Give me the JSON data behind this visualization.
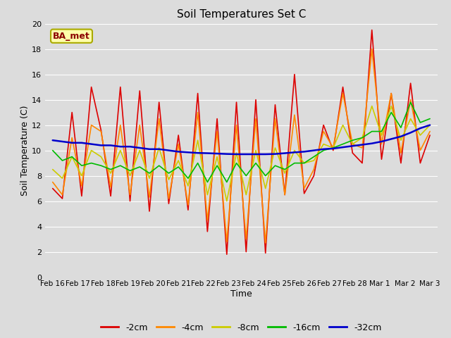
{
  "title": "Soil Temperatures Set C",
  "xlabel": "Time",
  "ylabel": "Soil Temperature (C)",
  "annotation": "BA_met",
  "ylim": [
    0,
    20
  ],
  "plot_bg_color": "#dcdcdc",
  "fig_bg_color": "#dcdcdc",
  "grid_color": "#ffffff",
  "x_labels": [
    "Feb 16",
    "Feb 17",
    "Feb 18",
    "Feb 19",
    "Feb 20",
    "Feb 21",
    "Feb 22",
    "Feb 23",
    "Feb 24",
    "Feb 25",
    "Feb 26",
    "Feb 27",
    "Feb 28",
    "Mar 1",
    "Mar 2",
    "Mar 3"
  ],
  "series": {
    "-2cm": {
      "color": "#dd0000",
      "lw": 1.2
    },
    "-4cm": {
      "color": "#ff8800",
      "lw": 1.2
    },
    "-8cm": {
      "color": "#cccc00",
      "lw": 1.2
    },
    "-16cm": {
      "color": "#00bb00",
      "lw": 1.2
    },
    "-32cm": {
      "color": "#0000cc",
      "lw": 1.8
    }
  },
  "data_2cm": [
    7.0,
    6.2,
    13.0,
    6.4,
    15.0,
    11.6,
    6.4,
    15.0,
    6.0,
    14.7,
    5.2,
    13.8,
    5.8,
    11.2,
    5.3,
    14.5,
    3.6,
    12.5,
    1.8,
    13.8,
    2.0,
    14.0,
    1.9,
    13.6,
    6.5,
    16.0,
    6.6,
    8.0,
    12.0,
    10.0,
    15.0,
    9.8,
    9.0,
    19.5,
    9.3,
    14.5,
    9.0,
    15.3,
    9.0,
    11.2
  ],
  "data_4cm": [
    7.5,
    6.5,
    11.0,
    7.2,
    12.0,
    11.5,
    7.1,
    12.0,
    6.5,
    12.0,
    6.3,
    12.5,
    6.2,
    10.5,
    5.7,
    13.0,
    4.5,
    11.5,
    2.8,
    12.0,
    3.0,
    12.5,
    2.7,
    12.5,
    6.5,
    12.8,
    7.0,
    8.5,
    11.5,
    10.2,
    14.5,
    10.5,
    10.2,
    18.0,
    10.5,
    14.5,
    9.8,
    14.0,
    10.0,
    11.5
  ],
  "data_8cm": [
    8.5,
    7.8,
    9.5,
    8.0,
    10.0,
    9.5,
    8.2,
    10.0,
    8.0,
    10.0,
    7.8,
    10.2,
    7.7,
    9.2,
    7.2,
    10.8,
    6.5,
    9.5,
    6.0,
    9.8,
    6.5,
    10.0,
    7.0,
    10.2,
    8.2,
    10.0,
    9.0,
    9.2,
    10.5,
    10.2,
    12.0,
    10.5,
    11.0,
    13.5,
    11.2,
    13.5,
    10.8,
    12.5,
    11.2,
    12.0
  ],
  "data_16cm": [
    10.0,
    9.2,
    9.5,
    8.8,
    9.0,
    8.8,
    8.5,
    8.8,
    8.4,
    8.7,
    8.2,
    8.8,
    8.2,
    8.7,
    7.8,
    9.0,
    7.5,
    8.8,
    7.5,
    9.0,
    8.0,
    9.0,
    8.0,
    8.8,
    8.5,
    9.0,
    9.0,
    9.5,
    10.0,
    10.2,
    10.5,
    10.8,
    11.0,
    11.5,
    11.5,
    13.0,
    11.8,
    13.8,
    12.2,
    12.5
  ],
  "data_32cm": [
    10.8,
    10.7,
    10.6,
    10.6,
    10.5,
    10.4,
    10.4,
    10.3,
    10.3,
    10.2,
    10.1,
    10.1,
    10.0,
    9.9,
    9.85,
    9.8,
    9.78,
    9.75,
    9.72,
    9.7,
    9.7,
    9.7,
    9.7,
    9.72,
    9.78,
    9.85,
    9.9,
    10.0,
    10.1,
    10.15,
    10.25,
    10.35,
    10.45,
    10.55,
    10.7,
    10.9,
    11.1,
    11.4,
    11.75,
    12.0
  ],
  "yticks": [
    0,
    2,
    4,
    6,
    8,
    10,
    12,
    14,
    16,
    18,
    20
  ],
  "title_fontsize": 11,
  "label_fontsize": 9,
  "tick_fontsize": 8,
  "legend_fontsize": 9
}
